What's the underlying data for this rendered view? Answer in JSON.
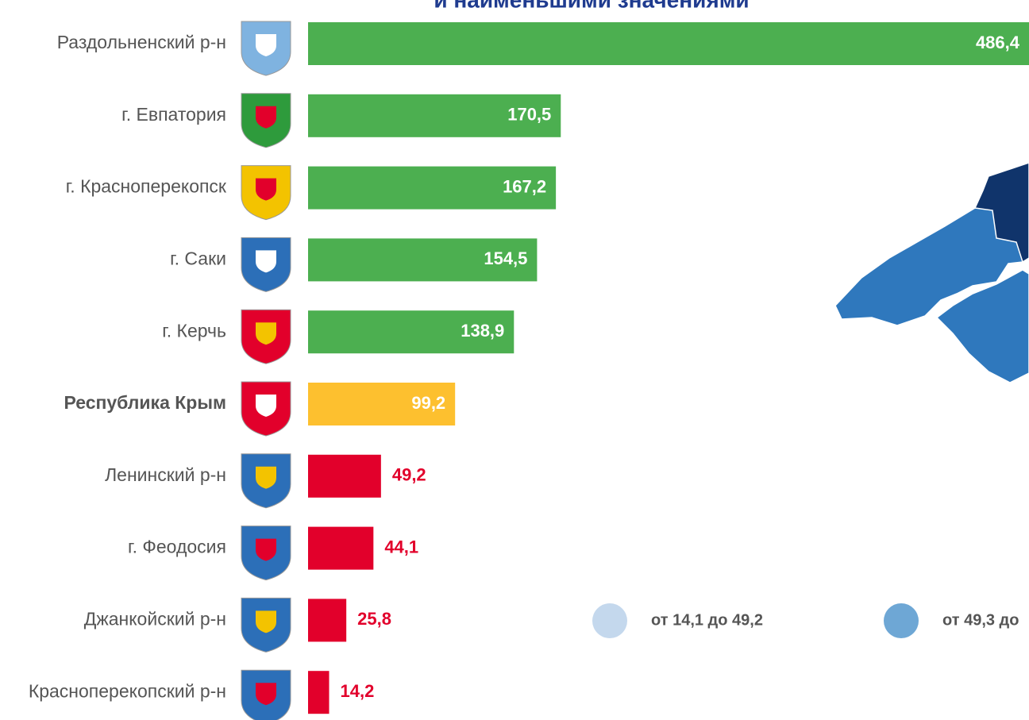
{
  "chart_data": {
    "type": "bar",
    "orientation": "horizontal",
    "title": "и наименьшими значениями",
    "categories": [
      "Раздольненский р-н",
      "г. Евпатория",
      "г. Красноперекопск",
      "г. Саки",
      "г. Керчь",
      "Республика Крым",
      "Ленинский р-н",
      "г. Феодосия",
      "Джанкойский р-н",
      "Красноперекопский р-н"
    ],
    "values": [
      486.4,
      170.5,
      167.2,
      154.5,
      138.9,
      99.2,
      49.2,
      44.1,
      25.8,
      14.2
    ],
    "value_labels": [
      "486,4",
      "170,5",
      "167,2",
      "154,5",
      "138,9",
      "99,2",
      "49,2",
      "44,1",
      "25,8",
      "14,2"
    ],
    "colors": [
      "#4caf50",
      "#4caf50",
      "#4caf50",
      "#4caf50",
      "#4caf50",
      "#fdc02f",
      "#e2002b",
      "#e2002b",
      "#e2002b",
      "#e2002b"
    ],
    "legend": [
      {
        "label": "от 14,1 до 49,2",
        "color": "#c4d8ed"
      },
      {
        "label": "от 49,3 до",
        "color": "#6ea7d5"
      }
    ]
  }
}
